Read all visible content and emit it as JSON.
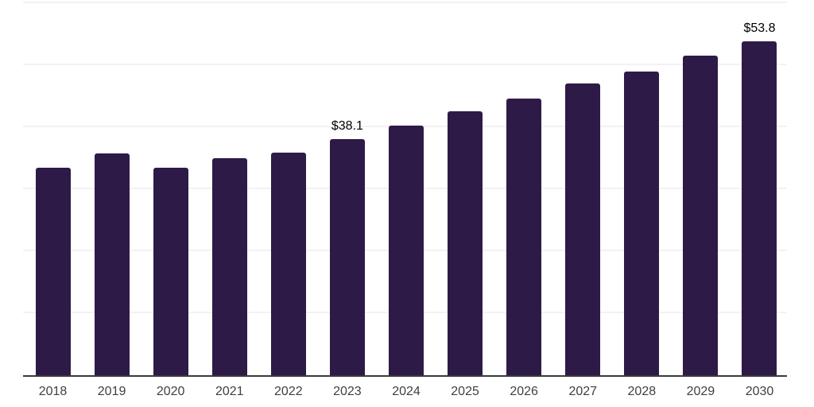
{
  "chart_data": {
    "type": "bar",
    "title": "",
    "xlabel": "",
    "ylabel": "",
    "categories": [
      "2018",
      "2019",
      "2020",
      "2021",
      "2022",
      "2023",
      "2024",
      "2025",
      "2026",
      "2027",
      "2028",
      "2029",
      "2030"
    ],
    "values": [
      33.5,
      35.8,
      33.4,
      35.0,
      35.9,
      38.1,
      40.3,
      42.6,
      44.6,
      47.0,
      49.0,
      51.5,
      53.8
    ],
    "data_labels": [
      {
        "category": "2023",
        "text": "$38.1"
      },
      {
        "category": "2030",
        "text": "$53.8"
      }
    ],
    "ylim": [
      0,
      60
    ],
    "gridline_interval": 10,
    "grid": true,
    "legend": false,
    "colors": {
      "bar": "#2e1a47",
      "axis_line": "#3a3a3a",
      "gridline": "#f2f2f2",
      "value_label": "#000000",
      "tick_label": "#404040",
      "background": "#ffffff"
    }
  }
}
